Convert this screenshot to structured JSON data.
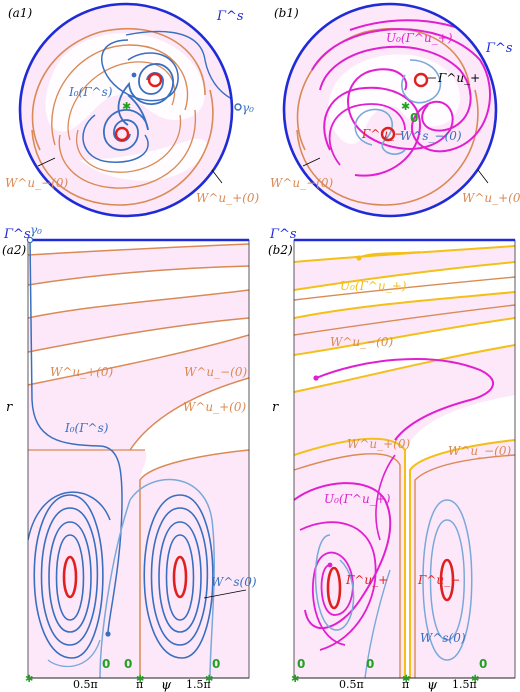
{
  "colors": {
    "blue_border": "#1f2bd6",
    "blue_curve": "#3a6fbe",
    "blue_light": "#7aa8d8",
    "orange": "#d98a55",
    "magenta": "#e020d0",
    "yellow": "#f2c018",
    "red": "#e0201e",
    "green": "#22a022",
    "pink_fill": "#fde8fa"
  },
  "panels": {
    "a1": {
      "tag": "(a1)",
      "gamma_s": "Γ^s",
      "i0": "I₀(Γ^s)",
      "gamma0": "γ₀",
      "w_minus_u": "W^u_−(0)",
      "w_plus_u": "W^u_+(0)"
    },
    "b1": {
      "tag": "(b1)",
      "gamma_s": "Γ^s",
      "u0": "U₀(Γ^u_+)",
      "gamma_plus_u": "Γ^u_+",
      "gamma_minus_u": "Γ^u_−",
      "w_minus_s": "W^s_−(0)",
      "zero": "0",
      "w_minus_u": "W^u_−(0)",
      "w_plus_u": "W^u_+(0)"
    },
    "a2": {
      "tag": "(a2)",
      "gamma_s": "Γ^s",
      "gamma0": "γ₀",
      "r_axis": "r",
      "w_plus_u": "W^u_+(0)",
      "w_minus_u_1": "W^u_−(0)",
      "w_plus_u_2": "W^u_+(0)",
      "i0": "I₀(Γ^s)",
      "ws": "W^s(0)",
      "ticks": [
        "0.5π",
        "π",
        "1.5π"
      ],
      "zeros": [
        "0",
        "0",
        "0"
      ],
      "psi": "ψ"
    },
    "b2": {
      "tag": "(b2)",
      "gamma_s": "Γ^s",
      "r_axis": "r",
      "u0_top": "U₀(Γ^u_+)",
      "w_minus_u_1": "W^u_−(0)",
      "w_plus_u": "W^u_+(0)",
      "w_minus_u_2": "W^u_−(0)",
      "u0_mid": "U₀(Γ^u_+)",
      "gamma_plus_u": "Γ^u_+",
      "gamma_minus_u": "Γ^u_−",
      "ws": "W^s(0)",
      "ticks": [
        "0.5π",
        "π",
        "1.5π"
      ],
      "zeros": [
        "0",
        "0",
        "0"
      ],
      "psi": "ψ"
    }
  }
}
